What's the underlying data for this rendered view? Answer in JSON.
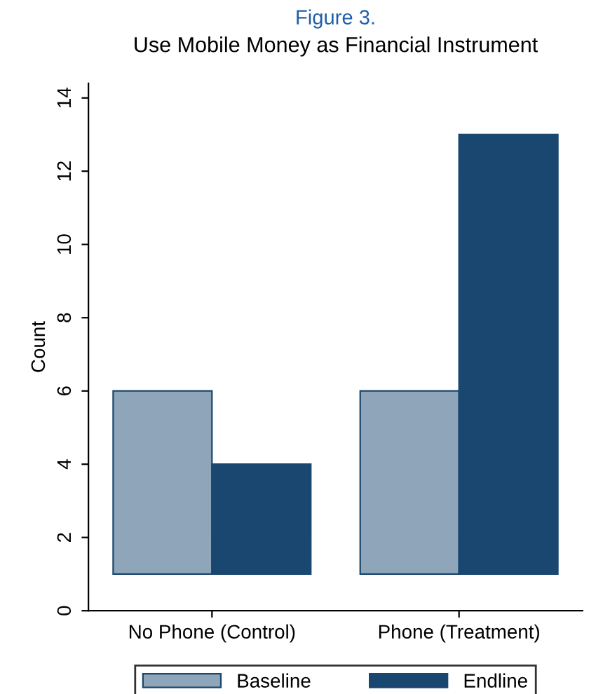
{
  "chart_data": {
    "type": "bar",
    "title": "Figure 3.",
    "subtitle": "Use Mobile Money as Financial Instrument",
    "ylabel": "Count",
    "categories": [
      "No Phone (Control)",
      "Phone (Treatment)"
    ],
    "series": [
      {
        "name": "Baseline",
        "color": "#8fa5b9",
        "values": [
          5,
          5
        ],
        "base": [
          1,
          1
        ]
      },
      {
        "name": "Endline",
        "color": "#1a476f",
        "values": [
          3,
          12
        ],
        "base": [
          1,
          1
        ]
      }
    ],
    "ylim": [
      0,
      14.4
    ],
    "yticks": [
      0,
      2,
      4,
      6,
      8,
      10,
      12,
      14
    ],
    "grid": false,
    "legend": "bottom"
  }
}
